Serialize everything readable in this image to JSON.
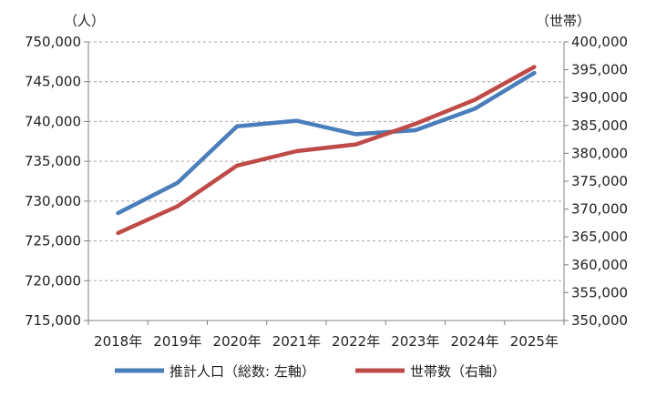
{
  "chart_data": {
    "type": "line",
    "categories": [
      "2018年",
      "2019年",
      "2020年",
      "2021年",
      "2022年",
      "2023年",
      "2024年",
      "2025年"
    ],
    "left_axis": {
      "unit_label": "（人）",
      "ylim": [
        715000,
        750000
      ],
      "step": 5000,
      "tick_labels": [
        "715,000",
        "720,000",
        "725,000",
        "730,000",
        "735,000",
        "740,000",
        "745,000",
        "750,000"
      ]
    },
    "right_axis": {
      "unit_label": "（世帯）",
      "ylim": [
        350000,
        400000
      ],
      "step": 5000,
      "tick_labels": [
        "350,000",
        "355,000",
        "360,000",
        "365,000",
        "370,000",
        "375,000",
        "380,000",
        "385,000",
        "390,000",
        "395,000",
        "400,000"
      ]
    },
    "series": [
      {
        "name": "推計人口（総数: 左軸）",
        "axis": "left",
        "color": "#4a7ebb",
        "values": [
          728500,
          732300,
          739400,
          740100,
          738400,
          738900,
          741600,
          746100
        ]
      },
      {
        "name": "世帯数（右軸）",
        "axis": "right",
        "color": "#be4b48",
        "values": [
          365700,
          370500,
          377800,
          380400,
          381600,
          385300,
          389600,
          395500
        ]
      }
    ],
    "grid": "horizontal dashed",
    "legend_placement": "bottom"
  }
}
